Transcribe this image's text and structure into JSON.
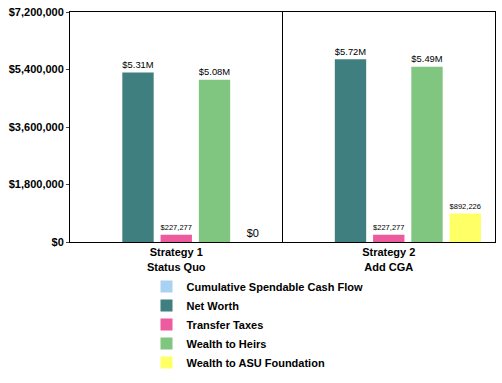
{
  "chart_data": {
    "type": "bar",
    "categories": [
      "Strategy 1\nStatus Quo",
      "Strategy 2\nAdd CGA"
    ],
    "series": [
      {
        "name": "Cumulative Spendable Cash Flow",
        "color": "#a9d1f2",
        "values": [
          0,
          0
        ],
        "value_labels": [
          null,
          null
        ]
      },
      {
        "name": "Net Worth",
        "color": "#3f7f7f",
        "values": [
          5310000,
          5720000
        ],
        "value_labels": [
          "$5.31M",
          "$5.72M"
        ]
      },
      {
        "name": "Transfer Taxes",
        "color": "#ee5a9e",
        "values": [
          227277,
          227277
        ],
        "value_labels": [
          "$227,277",
          "$227,277"
        ]
      },
      {
        "name": "Wealth to Heirs",
        "color": "#80c680",
        "values": [
          5080000,
          5490000
        ],
        "value_labels": [
          "$5.08M",
          "$5.49M"
        ]
      },
      {
        "name": "Wealth to ASU Foundation",
        "color": "#ffff66",
        "values": [
          0,
          892226
        ],
        "value_labels": [
          "$0",
          "$892,226"
        ]
      }
    ],
    "ylim": [
      0,
      7200000
    ],
    "yticks": [
      {
        "value": 0,
        "label": "$0"
      },
      {
        "value": 1800000,
        "label": "$1,800,000"
      },
      {
        "value": 3600000,
        "label": "$3,600,000"
      },
      {
        "value": 5400000,
        "label": "$5,400,000"
      },
      {
        "value": 7200000,
        "label": "$7,200,000"
      }
    ],
    "grid": false,
    "data_labels": true,
    "legend": "bottom"
  }
}
